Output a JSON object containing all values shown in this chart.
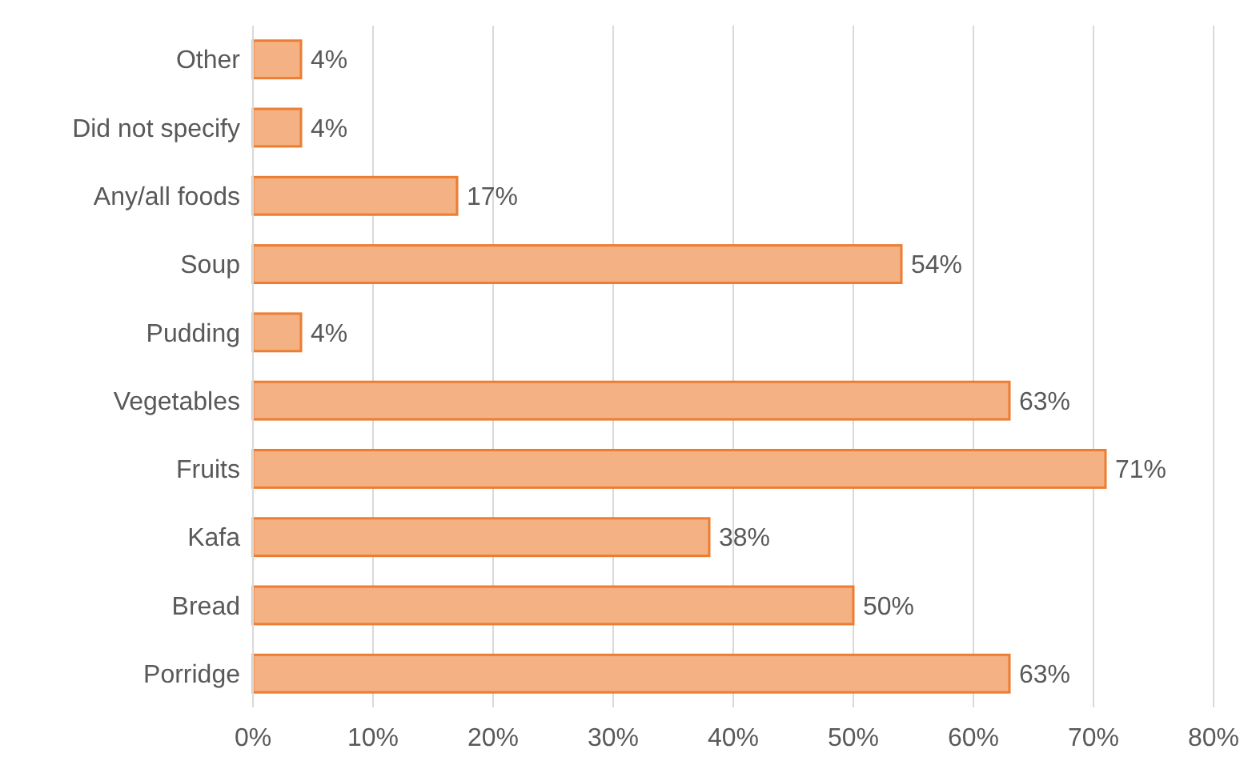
{
  "chart_data": {
    "type": "bar",
    "orientation": "horizontal",
    "categories": [
      "Other",
      "Did not specify",
      "Any/all foods",
      "Soup",
      "Pudding",
      "Vegetables",
      "Fruits",
      "Kafa",
      "Bread",
      "Porridge"
    ],
    "values": [
      4,
      4,
      17,
      54,
      4,
      63,
      71,
      38,
      50,
      63
    ],
    "value_labels": [
      "4%",
      "4%",
      "17%",
      "54%",
      "4%",
      "63%",
      "71%",
      "38%",
      "50%",
      "63%"
    ],
    "color": "#f4b183",
    "xlim": [
      0,
      80
    ],
    "xticks": [
      {
        "value": 0,
        "label": "0%"
      },
      {
        "value": 10,
        "label": "10%"
      },
      {
        "value": 20,
        "label": "20%"
      },
      {
        "value": 30,
        "label": "30%"
      },
      {
        "value": 40,
        "label": "40%"
      },
      {
        "value": 50,
        "label": "50%"
      },
      {
        "value": 60,
        "label": "60%"
      },
      {
        "value": 70,
        "label": "70%"
      },
      {
        "value": 80,
        "label": "80%"
      }
    ],
    "grid": "x"
  }
}
